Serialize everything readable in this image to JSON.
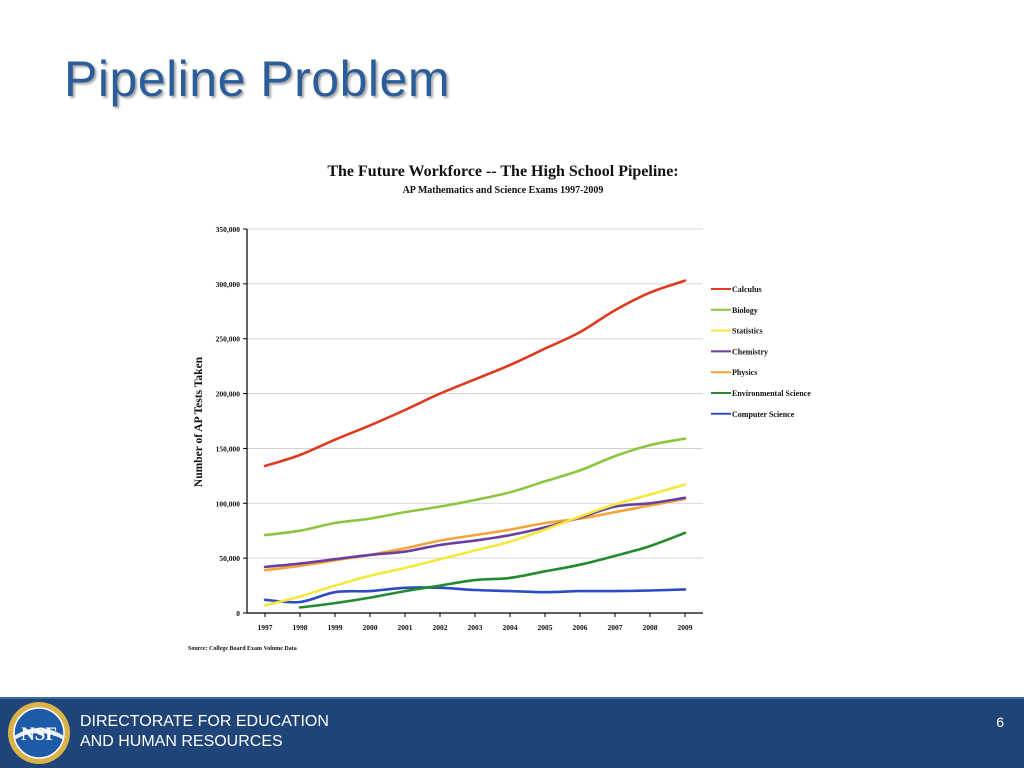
{
  "slide": {
    "title": "Pipeline Problem",
    "page_number": "6"
  },
  "footer": {
    "org_line1": "DIRECTORATE FOR EDUCATION",
    "org_line2": "AND HUMAN RESOURCES",
    "logo_text": "NSF"
  },
  "colors": {
    "title": "#2c5d9b",
    "footer_bg": "#1f4478"
  },
  "chart_data": {
    "type": "line",
    "title": "The Future Workforce -- The High School Pipeline:",
    "subtitle": "AP Mathematics and Science Exams 1997-2009",
    "xlabel": "",
    "ylabel": "Number of AP Tests Taken",
    "source": "Source: College Board Exam Volume Data",
    "ylim": [
      0,
      350000
    ],
    "yticks": [
      0,
      50000,
      100000,
      150000,
      200000,
      250000,
      300000,
      350000
    ],
    "ytick_labels": [
      "0",
      "50,000",
      "100,000",
      "150,000",
      "200,000",
      "250,000",
      "300,000",
      "350,000"
    ],
    "grid": true,
    "legend_position": "right",
    "categories": [
      "1997",
      "1998",
      "1999",
      "2000",
      "2001",
      "2002",
      "2003",
      "2004",
      "2005",
      "2006",
      "2007",
      "2008",
      "2009"
    ],
    "series": [
      {
        "name": "Calculus",
        "color": "#e03a1e",
        "values": [
          134000,
          144000,
          158000,
          171000,
          185000,
          200000,
          213000,
          226000,
          241000,
          256000,
          276000,
          292000,
          303000
        ]
      },
      {
        "name": "Biology",
        "color": "#8cc63f",
        "values": [
          71000,
          75000,
          82000,
          86000,
          92000,
          97000,
          103000,
          110000,
          120000,
          130000,
          143000,
          153000,
          159000
        ]
      },
      {
        "name": "Statistics",
        "color": "#f5e83c",
        "values": [
          7000,
          15000,
          25000,
          34000,
          41000,
          49000,
          57000,
          65000,
          76000,
          88000,
          99000,
          108000,
          117000
        ]
      },
      {
        "name": "Chemistry",
        "color": "#6a3fa0",
        "values": [
          42000,
          45000,
          49000,
          53000,
          56000,
          62000,
          66000,
          71000,
          78000,
          87000,
          97000,
          100000,
          105000
        ]
      },
      {
        "name": "Physics",
        "color": "#f4a43a",
        "values": [
          39000,
          43000,
          48000,
          53000,
          59000,
          66000,
          71000,
          76000,
          82000,
          86000,
          92000,
          98000,
          104000
        ]
      },
      {
        "name": "Environmental Science",
        "color": "#238b2e",
        "values": [
          null,
          5000,
          9000,
          14000,
          20000,
          25000,
          30000,
          32000,
          38000,
          44000,
          52000,
          61000,
          73000
        ]
      },
      {
        "name": "Computer Science",
        "color": "#2b4cc4",
        "values": [
          12000,
          10000,
          19000,
          20000,
          23000,
          23000,
          21000,
          20000,
          19000,
          20000,
          20000,
          20500,
          21500
        ]
      }
    ]
  }
}
